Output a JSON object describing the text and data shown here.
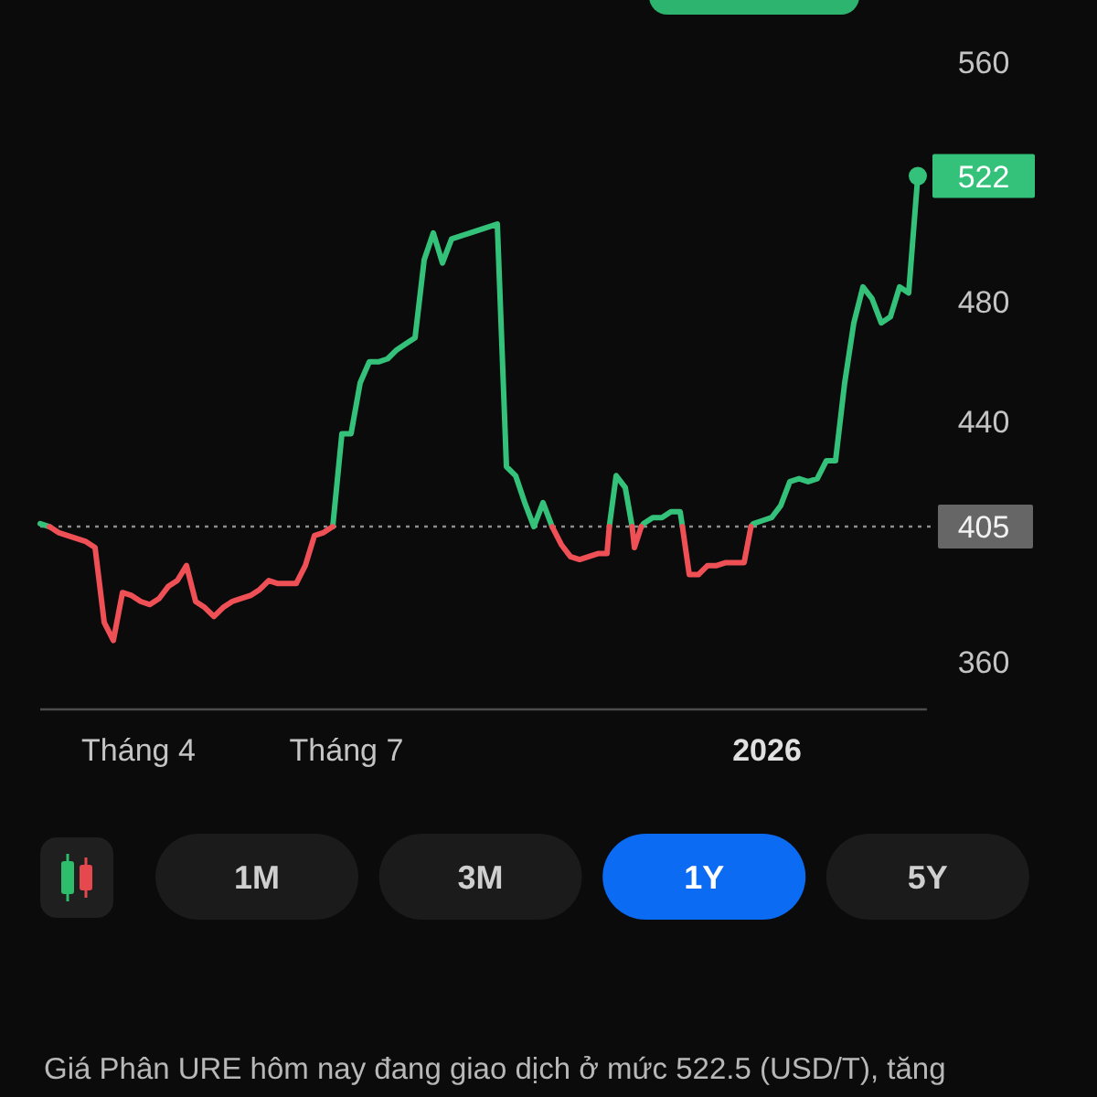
{
  "chart_data": {
    "type": "line",
    "xlim": [
      "2025-02-17",
      "2026-03-12"
    ],
    "ylim": [
      344,
      560
    ],
    "xticks": [
      {
        "value": "2025-04-01",
        "label": "Tháng 4"
      },
      {
        "value": "2025-07-01",
        "label": "Tháng 7"
      },
      {
        "value": "2026-01-01",
        "label": "2026"
      }
    ],
    "yticks": [
      360,
      440,
      480,
      560
    ],
    "series": [
      {
        "color": "#34c27a",
        "x": [
          "2025-02-17",
          "2025-02-21",
          "2025-03-01",
          "2025-06-25",
          "2025-06-29",
          "2025-07-03",
          "2025-07-07",
          "2025-07-11",
          "2025-07-15",
          "2025-07-19",
          "2025-07-23",
          "2025-07-27",
          "2025-07-31",
          "2025-08-04",
          "2025-08-08",
          "2025-08-12",
          "2025-08-16",
          "2025-08-20",
          "2025-08-24",
          "2025-08-28",
          "2025-09-01",
          "2025-09-05",
          "2025-09-09",
          "2025-09-13",
          "2025-09-17",
          "2025-09-21",
          "2025-09-25",
          "2025-09-29",
          "2025-10-03",
          "2025-10-24",
          "2025-10-27",
          "2025-10-31",
          "2025-11-03",
          "2025-11-04",
          "2025-11-07",
          "2025-11-08",
          "2025-11-12",
          "2025-11-16",
          "2025-11-20",
          "2025-11-24",
          "2025-11-25",
          "2025-12-02",
          "2025-12-25",
          "2025-12-26",
          "2025-12-30",
          "2026-01-03",
          "2026-01-07",
          "2026-01-11",
          "2026-01-15",
          "2026-01-19",
          "2026-01-23",
          "2026-01-27",
          "2026-01-31",
          "2026-02-04",
          "2026-02-08",
          "2026-02-12",
          "2026-02-16",
          "2026-02-20",
          "2026-02-24",
          "2026-02-28",
          "2026-03-04",
          "2026-03-08"
        ],
        "values": [
          406,
          405,
          null,
          405,
          436,
          436,
          453,
          460,
          460,
          461,
          464,
          466,
          468,
          494,
          503,
          493,
          501,
          502,
          503,
          504,
          505,
          506,
          425,
          422,
          413,
          405,
          413,
          405,
          null,
          405,
          422,
          418,
          405,
          null,
          405,
          406,
          408,
          408,
          410,
          410,
          405,
          null,
          405,
          406,
          407,
          408,
          412,
          420,
          421,
          420,
          421,
          427,
          427,
          453,
          473,
          485,
          481,
          473,
          475,
          485,
          483,
          522
        ]
      },
      {
        "color": "#ef5056",
        "x": [
          "2025-02-21",
          "2025-02-25",
          "2025-03-01",
          "2025-03-05",
          "2025-03-09",
          "2025-03-13",
          "2025-03-17",
          "2025-03-21",
          "2025-03-25",
          "2025-03-29",
          "2025-04-02",
          "2025-04-06",
          "2025-04-10",
          "2025-04-14",
          "2025-04-18",
          "2025-04-22",
          "2025-04-26",
          "2025-04-30",
          "2025-05-04",
          "2025-05-08",
          "2025-05-12",
          "2025-05-16",
          "2025-05-20",
          "2025-05-24",
          "2025-05-28",
          "2025-06-01",
          "2025-06-05",
          "2025-06-09",
          "2025-06-13",
          "2025-06-17",
          "2025-06-21",
          "2025-06-25",
          "2025-07-01",
          "2025-09-29",
          "2025-10-03",
          "2025-10-07",
          "2025-10-11",
          "2025-10-15",
          "2025-10-19",
          "2025-10-23",
          "2025-10-24",
          "2025-10-27",
          "2025-11-03",
          "2025-11-04",
          "2025-11-07",
          "2025-11-12",
          "2025-11-25",
          "2025-11-28",
          "2025-12-02",
          "2025-12-06",
          "2025-12-10",
          "2025-12-14",
          "2025-12-18",
          "2025-12-22",
          "2025-12-25"
        ],
        "values": [
          405,
          403,
          402,
          401,
          400,
          398,
          373,
          367,
          383,
          382,
          380,
          379,
          381,
          385,
          387,
          392,
          380,
          378,
          375,
          378,
          380,
          381,
          382,
          384,
          387,
          386,
          386,
          386,
          392,
          402,
          403,
          405,
          null,
          405,
          399,
          395,
          394,
          395,
          396,
          396,
          405,
          null,
          405,
          398,
          405,
          null,
          405,
          389,
          389,
          392,
          392,
          393,
          393,
          393,
          405
        ]
      }
    ],
    "ref_lines": [
      {
        "axis": "y",
        "value": 405,
        "label": "405",
        "color": "#8c8c8c",
        "line_style": "dotted"
      }
    ],
    "annotations": [
      "1M",
      "3M",
      "1Y",
      "5Y",
      {
        "text": "522",
        "x": "2026-03-08",
        "y": 522
      },
      "Giá Phân URE hôm nay đang giao dịch ở mức 522.5 (USD/T), tăng"
    ]
  }
}
